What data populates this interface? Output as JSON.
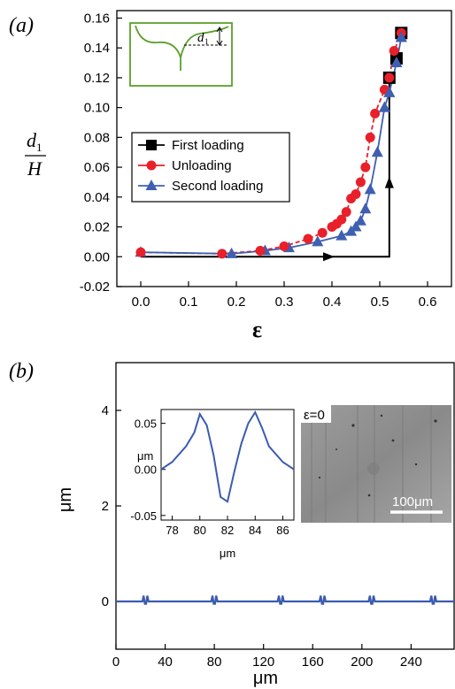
{
  "panel_a": {
    "label": "(a)",
    "ylabel_num": "d",
    "ylabel_sub": "1",
    "ylabel_den": "H",
    "xlabel": "ε",
    "inset_label": "d",
    "inset_label_sub": "1"
  },
  "panel_b": {
    "label": "(b)",
    "ylabel": "μm",
    "xlabel": "μm",
    "inset_ylabel": "μm",
    "inset_xlabel": "μm",
    "image_label": "ε=0",
    "scalebar_label": "100μm"
  },
  "colors": {
    "first_loading": "#000000",
    "unloading": "#e8202a",
    "second_loading": "#3f5fb0",
    "inset_frame": "#5aa02c",
    "trace": "#3b5bb0"
  },
  "chart_data": [
    {
      "type": "scatter",
      "xlabel": "ε",
      "ylabel": "d1/H",
      "xlim": [
        -0.05,
        0.65
      ],
      "ylim": [
        -0.02,
        0.165
      ],
      "x_ticks": [
        "0.0",
        "0.1",
        "0.2",
        "0.3",
        "0.4",
        "0.5",
        "0.6"
      ],
      "y_ticks": [
        "-0.02",
        "0.00",
        "0.02",
        "0.04",
        "0.06",
        "0.08",
        "0.10",
        "0.12",
        "0.14",
        "0.16"
      ],
      "legend_position": "center-left",
      "series": [
        {
          "name": "First loading",
          "marker": "square",
          "points": [
            [
              0.0,
              0.0
            ],
            [
              0.52,
              0.0
            ],
            [
              0.52,
              0.12
            ],
            [
              0.535,
              0.133
            ],
            [
              0.545,
              0.15
            ]
          ]
        },
        {
          "name": "Unloading",
          "marker": "circle",
          "points": [
            [
              0.0,
              0.003
            ],
            [
              0.17,
              0.002
            ],
            [
              0.25,
              0.004
            ],
            [
              0.3,
              0.007
            ],
            [
              0.35,
              0.012
            ],
            [
              0.38,
              0.016
            ],
            [
              0.4,
              0.02
            ],
            [
              0.41,
              0.022
            ],
            [
              0.42,
              0.025
            ],
            [
              0.43,
              0.03
            ],
            [
              0.44,
              0.039
            ],
            [
              0.45,
              0.042
            ],
            [
              0.46,
              0.05
            ],
            [
              0.47,
              0.06
            ],
            [
              0.48,
              0.08
            ],
            [
              0.49,
              0.096
            ],
            [
              0.51,
              0.112
            ],
            [
              0.52,
              0.12
            ],
            [
              0.53,
              0.138
            ],
            [
              0.545,
              0.15
            ]
          ]
        },
        {
          "name": "Second loading",
          "marker": "triangle",
          "points": [
            [
              0.0,
              0.003
            ],
            [
              0.19,
              0.002
            ],
            [
              0.26,
              0.004
            ],
            [
              0.31,
              0.006
            ],
            [
              0.37,
              0.01
            ],
            [
              0.42,
              0.014
            ],
            [
              0.44,
              0.017
            ],
            [
              0.45,
              0.02
            ],
            [
              0.46,
              0.024
            ],
            [
              0.47,
              0.032
            ],
            [
              0.48,
              0.045
            ],
            [
              0.495,
              0.07
            ],
            [
              0.51,
              0.1
            ],
            [
              0.52,
              0.11
            ],
            [
              0.535,
              0.13
            ],
            [
              0.545,
              0.147
            ]
          ]
        }
      ]
    },
    {
      "type": "line",
      "ylabel": "μm",
      "xlabel": "μm",
      "xlim": [
        0,
        275
      ],
      "ylim": [
        -1,
        5
      ],
      "x_ticks": [
        "0",
        "40",
        "80",
        "120",
        "160",
        "200",
        "240"
      ],
      "y_ticks": [
        "0",
        "2",
        "4"
      ],
      "series": [
        {
          "name": "",
          "peaks_x": [
            24,
            80,
            134,
            168,
            208,
            258
          ],
          "baseline": 0
        }
      ]
    },
    {
      "type": "line",
      "xlim": [
        77.2,
        86.8
      ],
      "ylim": [
        -0.055,
        0.065
      ],
      "x_ticks": [
        "78",
        "80",
        "82",
        "84",
        "86"
      ],
      "y_ticks": [
        "0.05",
        "0.00",
        "-0.05"
      ],
      "series": [
        {
          "name": "",
          "x": [
            77.2,
            78,
            79,
            79.6,
            80,
            80.5,
            81,
            81.5,
            82,
            82.5,
            83,
            83.5,
            84,
            84.5,
            85,
            86,
            86.8
          ],
          "y": [
            0.0,
            0.008,
            0.025,
            0.04,
            0.06,
            0.048,
            0.015,
            -0.03,
            -0.035,
            -0.002,
            0.028,
            0.05,
            0.062,
            0.045,
            0.025,
            0.008,
            0.0
          ]
        }
      ]
    }
  ]
}
